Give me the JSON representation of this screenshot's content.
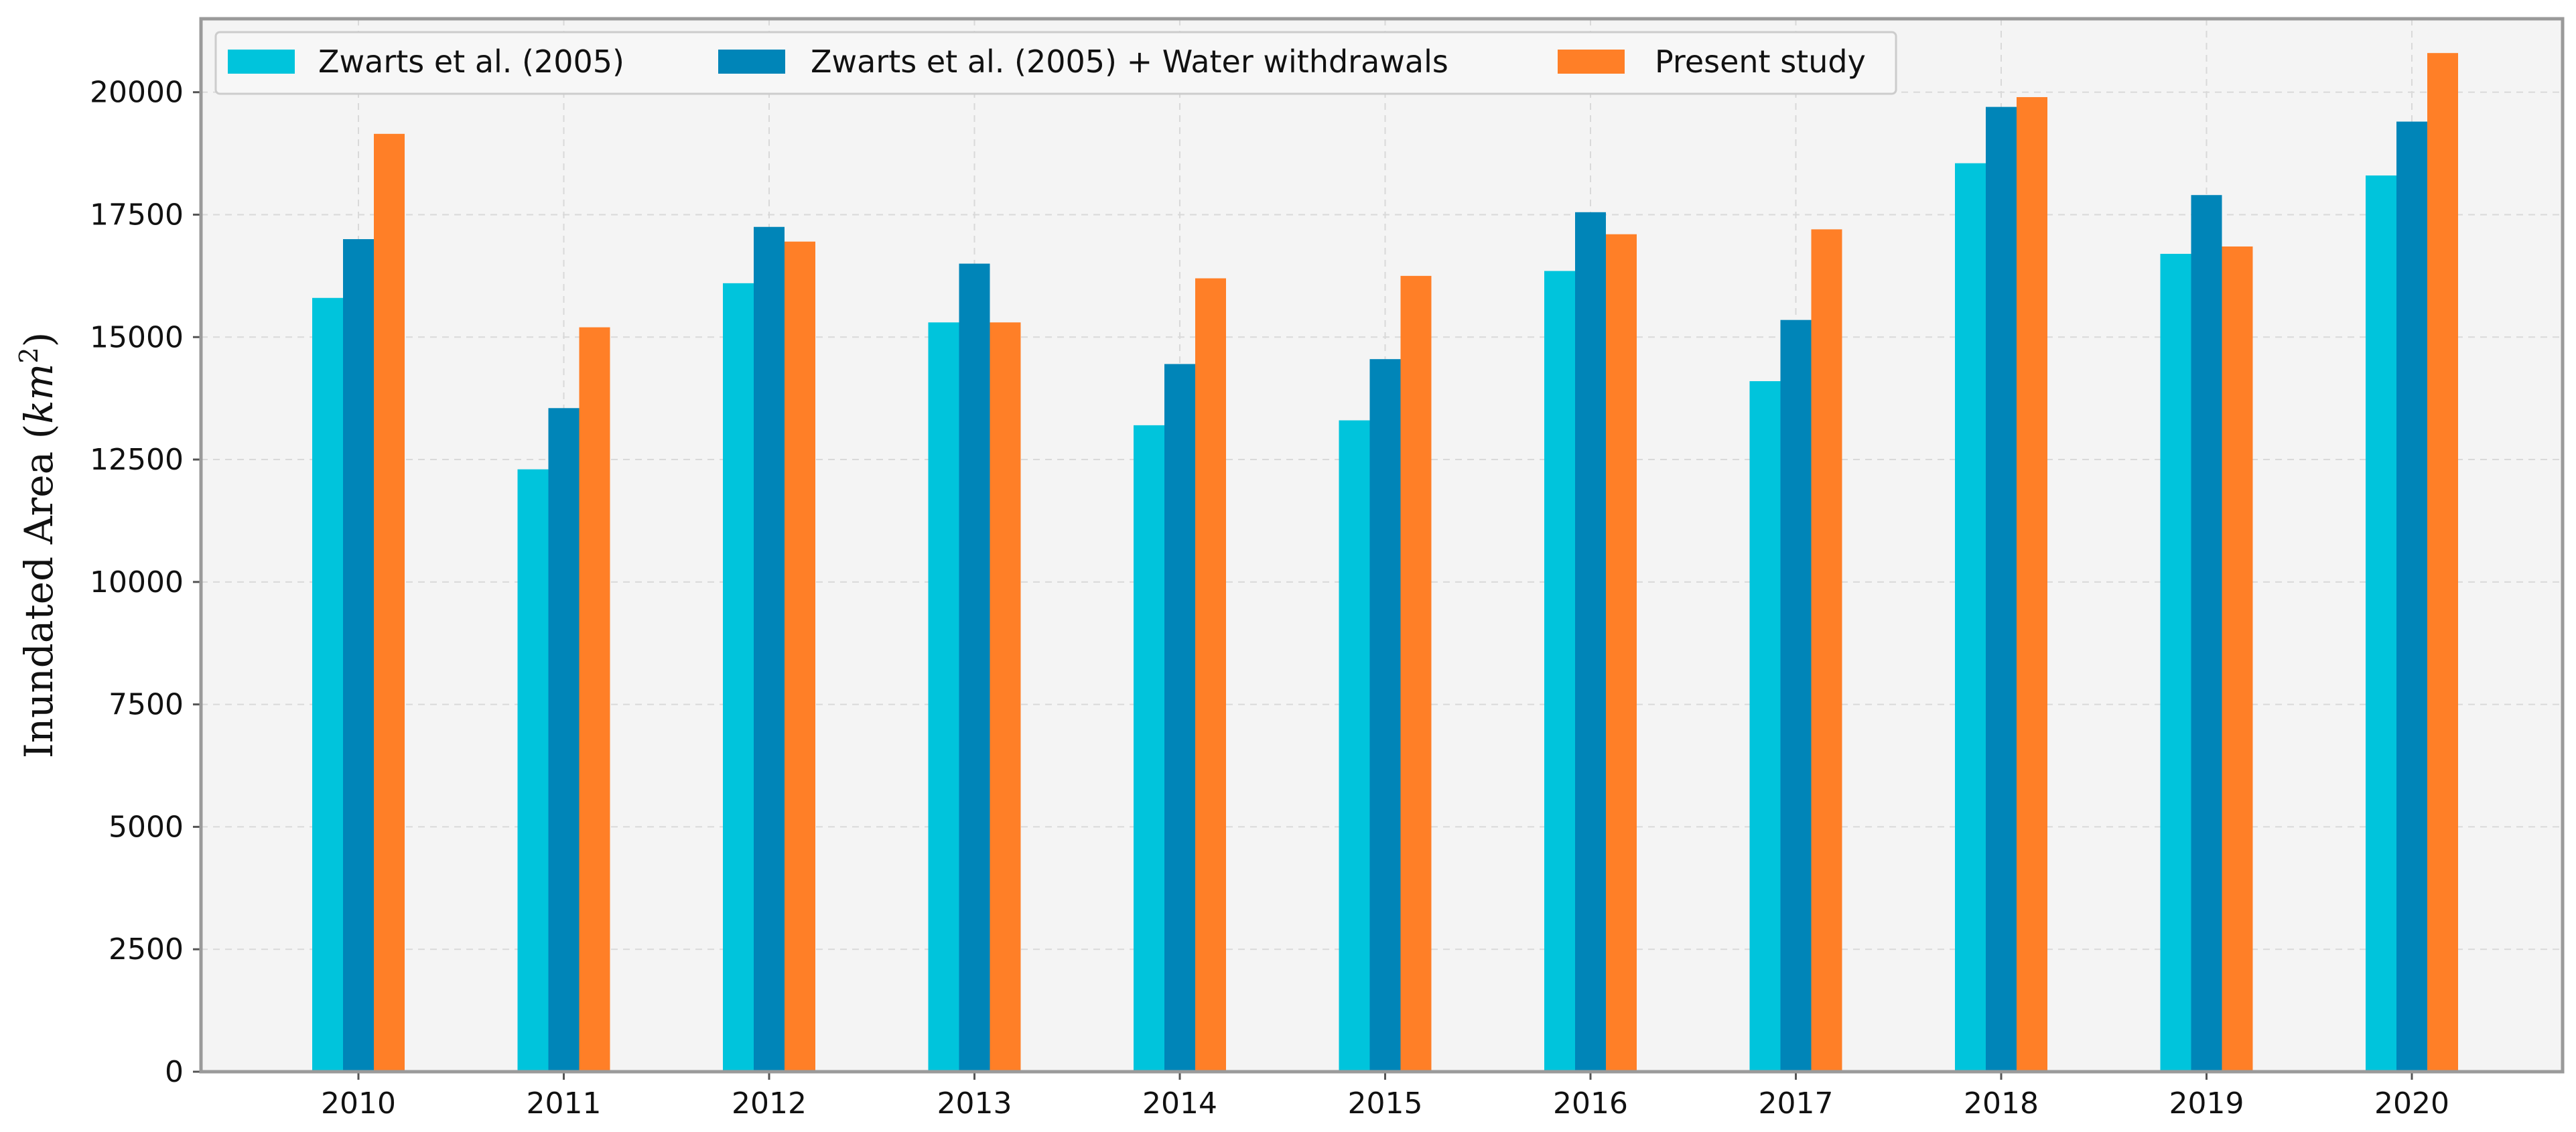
{
  "chart_data": {
    "type": "bar",
    "title": "",
    "xlabel": "",
    "ylabel": {
      "prefix": "Inundated Area (",
      "unit_base": "km",
      "unit_exp": "2",
      "suffix": ")"
    },
    "ylim": [
      0,
      21500
    ],
    "yticks": [
      0,
      2500,
      5000,
      7500,
      10000,
      12500,
      15000,
      17500,
      20000
    ],
    "ytick_labels": [
      "0",
      "2500",
      "5000",
      "7500",
      "10000",
      "12500",
      "15000",
      "17500",
      "20000"
    ],
    "grid": true,
    "legend_position": "top-left",
    "categories": [
      "2010",
      "2011",
      "2012",
      "2013",
      "2014",
      "2015",
      "2016",
      "2017",
      "2018",
      "2019",
      "2020"
    ],
    "series": [
      {
        "name": "Zwarts et al. (2005)",
        "color": "#00c4dc",
        "values": [
          15800,
          12300,
          16100,
          15300,
          13200,
          13300,
          16350,
          14100,
          18550,
          16700,
          18300
        ]
      },
      {
        "name": "Zwarts et al. (2005) + Water withdrawals",
        "color": "#0085b8",
        "values": [
          17000,
          13550,
          17250,
          16500,
          14450,
          14550,
          17550,
          15350,
          19700,
          17900,
          19400
        ]
      },
      {
        "name": "Present study",
        "color": "#ff7f27",
        "values": [
          19150,
          15200,
          16950,
          15300,
          16200,
          16250,
          17100,
          17200,
          19900,
          16850,
          20800
        ]
      }
    ]
  },
  "colors": {
    "plot_background": "#f4f4f4",
    "axis_frame": "#9a9a9a"
  }
}
